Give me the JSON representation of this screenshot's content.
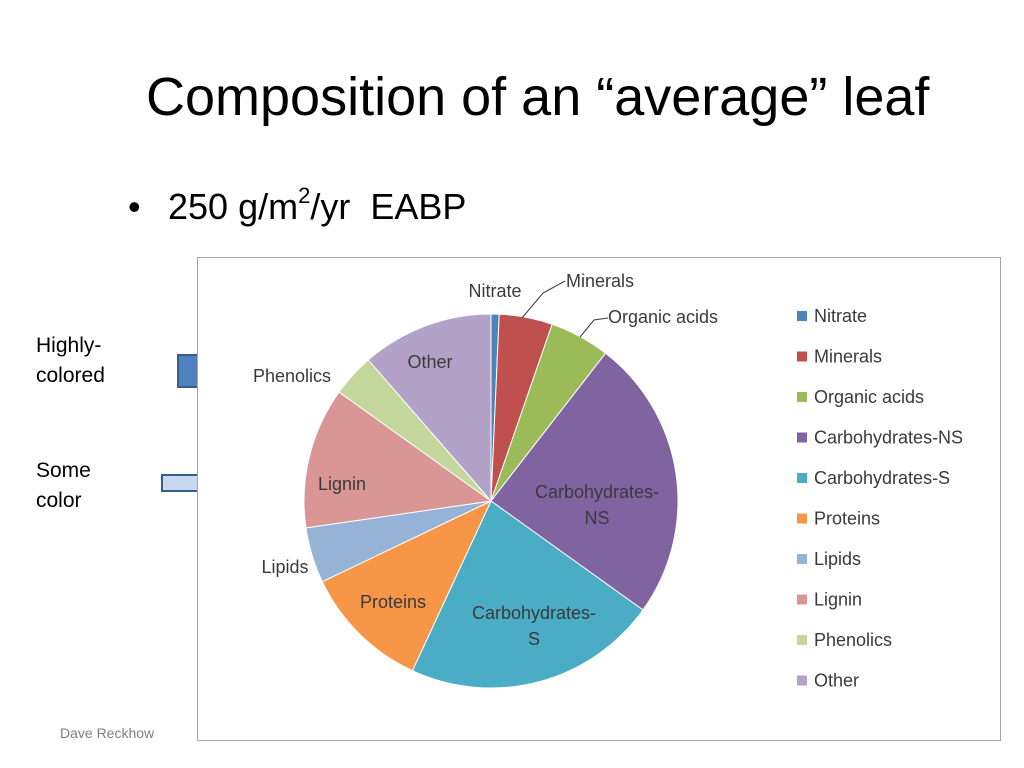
{
  "slide": {
    "title": "Composition of an “average” leaf",
    "bullet_symbol": "•",
    "bullet_prefix": "250 g/m",
    "bullet_sup": "2",
    "bullet_suffix": "/yr  EABP",
    "note_highly_line1": "Highly-",
    "note_highly_line2": "colored",
    "note_some_line1": "Some",
    "note_some_line2": "color",
    "footer": "Dave Reckhow"
  },
  "colors": {
    "highly_arrow_fill": "#4f81bd",
    "highly_arrow_stroke": "#385d8a",
    "some_arrow_fill": "#c6d9f1",
    "some_arrow_stroke": "#385d8a"
  },
  "chart_data": {
    "type": "pie",
    "title": "",
    "categories": [
      "Nitrate",
      "Minerals",
      "Organic acids",
      "Carbohydrates-NS",
      "Carbohydrates-S",
      "Proteins",
      "Lipids",
      "Lignin",
      "Phenolics",
      "Other"
    ],
    "values": [
      0.7,
      4.6,
      5.2,
      24.4,
      22.0,
      11.0,
      4.8,
      12.2,
      3.7,
      11.4
    ],
    "unit": "percent (estimated from slice angles)",
    "colors": [
      "#4f81bd",
      "#c0504d",
      "#9bbb59",
      "#8064a2",
      "#4bacc6",
      "#f79646",
      "#95b3d7",
      "#da9694",
      "#c3d69b",
      "#b3a2c7"
    ],
    "slice_labels": [
      "Nitrate",
      "Minerals",
      "Organic acids",
      "Carbohydrates-NS",
      "Carbohydrates-S",
      "Proteins",
      "Lipids",
      "Lignin",
      "Phenolics",
      "Other"
    ],
    "legend": {
      "position": "right",
      "entries": [
        "Nitrate",
        "Minerals",
        "Organic acids",
        "Carbohydrates-NS",
        "Carbohydrates-S",
        "Proteins",
        "Lipids",
        "Lignin",
        "Phenolics",
        "Other"
      ]
    },
    "start": "top",
    "direction": "clockwise"
  }
}
